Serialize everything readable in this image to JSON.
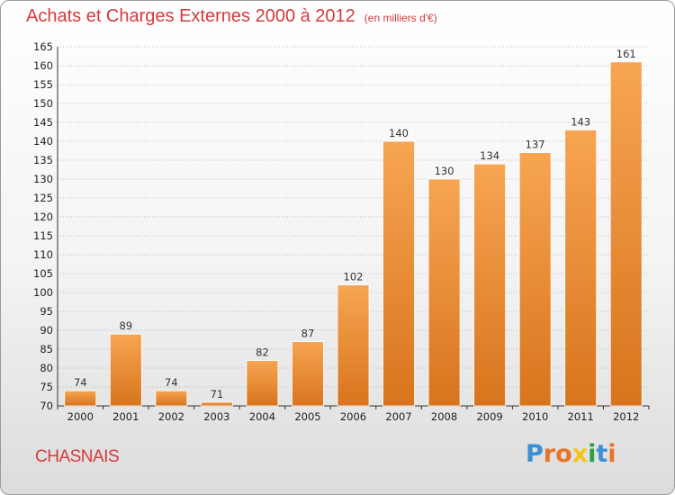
{
  "header": {
    "title": "Achats et Charges Externes 2000 à 2012",
    "unit": "(en milliers d'€)"
  },
  "footer": {
    "commune": "CHASNAIS",
    "brand": "Proxiti"
  },
  "colors": {
    "title": "#d63a3a",
    "bar_light": "#f7a552",
    "bar_dark": "#d8741d",
    "grid": "#bdbdbd",
    "axis": "#333333"
  },
  "chart_data": {
    "type": "bar",
    "title": "Achats et Charges Externes 2000 à 2012",
    "subtitle": "(en milliers d'€)",
    "categories": [
      "2000",
      "2001",
      "2002",
      "2003",
      "2004",
      "2005",
      "2006",
      "2007",
      "2008",
      "2009",
      "2010",
      "2011",
      "2012"
    ],
    "values": [
      74,
      89,
      74,
      71,
      82,
      87,
      102,
      140,
      130,
      134,
      137,
      143,
      161
    ],
    "ylim": [
      70,
      165
    ],
    "yticks": [
      70,
      75,
      80,
      85,
      90,
      95,
      100,
      105,
      110,
      115,
      120,
      125,
      130,
      135,
      140,
      145,
      150,
      155,
      160,
      165
    ],
    "grid": true,
    "show_value_labels": true
  }
}
